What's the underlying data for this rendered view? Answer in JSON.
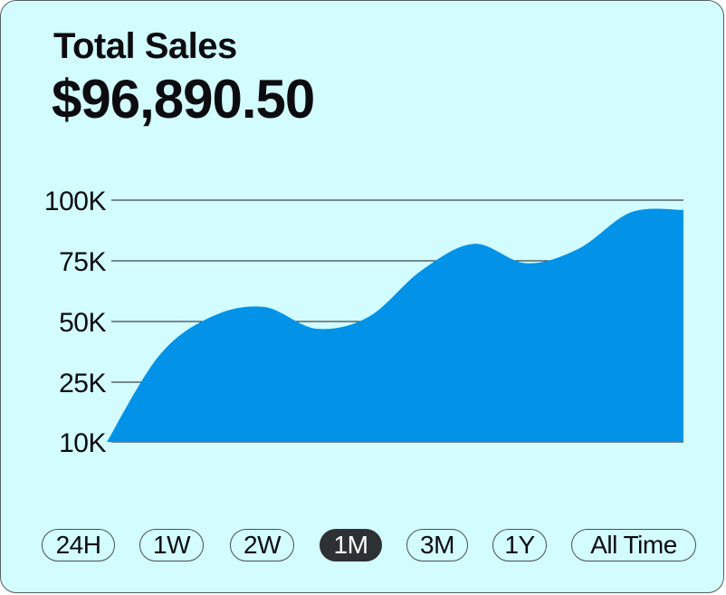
{
  "card": {
    "title": "Total Sales",
    "amount": "$96,890.50"
  },
  "colors": {
    "background": "#d2fcfe",
    "area": "#0293e8",
    "gridline": "#1a1a1a",
    "active_pill": "#2e3133"
  },
  "chart_data": {
    "type": "area",
    "title": "",
    "xlabel": "",
    "ylabel": "",
    "ylim": [
      10000,
      100000
    ],
    "y_ticks": [
      {
        "value": 100000,
        "label": "100K"
      },
      {
        "value": 75000,
        "label": "75K"
      },
      {
        "value": 50000,
        "label": "50K"
      },
      {
        "value": 25000,
        "label": "25K"
      },
      {
        "value": 10000,
        "label": "10K"
      }
    ],
    "grid": true,
    "series": [
      {
        "values": [
          10000,
          36000,
          52000,
          56000,
          47000,
          52000,
          71000,
          82000,
          74000,
          80000,
          95000,
          96000
        ]
      }
    ]
  },
  "time_ranges": {
    "active": "1M",
    "options": [
      "24H",
      "1W",
      "2W",
      "1M",
      "3M",
      "1Y",
      "All Time"
    ]
  }
}
